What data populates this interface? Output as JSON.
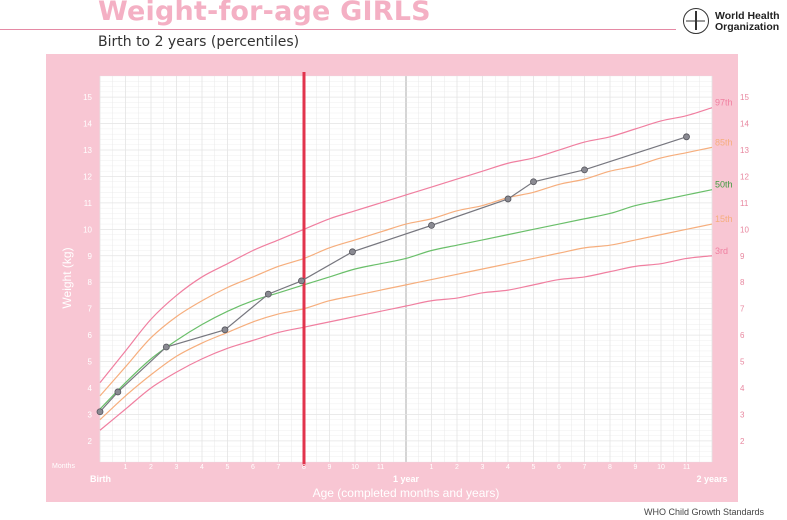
{
  "header": {
    "title": "Weight-for-age GIRLS",
    "subtitle": "Birth to 2 years (percentiles)",
    "org_name_line1": "World Health",
    "org_name_line2": "Organization",
    "footer": "WHO Child Growth Standards"
  },
  "colors": {
    "panel_bg": "#f8c6d3",
    "plot_bg": "#ffffff",
    "grid": "#e4e4e4",
    "p97": "#f07fa0",
    "p85": "#f6ae7d",
    "p50": "#6abf6a",
    "p15": "#f6ae7d",
    "p3": "#f07fa0",
    "child": "#77777f",
    "marker": "#e2344d"
  },
  "chart_data": {
    "type": "line",
    "title": "Weight-for-age GIRLS",
    "subtitle": "Birth to 2 years (percentiles)",
    "xlabel": "Age (completed months and years)",
    "ylabel": "Weight (kg)",
    "xlim": [
      0,
      24
    ],
    "ylim": [
      1.2,
      15.8
    ],
    "grid": true,
    "x_corner_label": "Months",
    "x_tick_labels": [
      {
        "x": 0,
        "label": "Birth",
        "bold": true
      },
      {
        "x": 1,
        "label": "1"
      },
      {
        "x": 2,
        "label": "2"
      },
      {
        "x": 3,
        "label": "3"
      },
      {
        "x": 4,
        "label": "4"
      },
      {
        "x": 5,
        "label": "5"
      },
      {
        "x": 6,
        "label": "6"
      },
      {
        "x": 7,
        "label": "7"
      },
      {
        "x": 8,
        "label": "8"
      },
      {
        "x": 9,
        "label": "9"
      },
      {
        "x": 10,
        "label": "10"
      },
      {
        "x": 11,
        "label": "11"
      },
      {
        "x": 12,
        "label": "1 year",
        "bold": true
      },
      {
        "x": 13,
        "label": "1"
      },
      {
        "x": 14,
        "label": "2"
      },
      {
        "x": 15,
        "label": "3"
      },
      {
        "x": 16,
        "label": "4"
      },
      {
        "x": 17,
        "label": "5"
      },
      {
        "x": 18,
        "label": "6"
      },
      {
        "x": 19,
        "label": "7"
      },
      {
        "x": 20,
        "label": "8"
      },
      {
        "x": 21,
        "label": "9"
      },
      {
        "x": 22,
        "label": "10"
      },
      {
        "x": 23,
        "label": "11"
      },
      {
        "x": 24,
        "label": "2 years",
        "bold": true
      }
    ],
    "y_ticks": [
      2,
      3,
      4,
      5,
      6,
      7,
      8,
      9,
      10,
      11,
      12,
      13,
      14,
      15
    ],
    "reference_line_x": 8,
    "percentile_curves": [
      {
        "name": "97th",
        "color_key": "p97",
        "x": [
          0,
          1,
          2,
          3,
          4,
          5,
          6,
          7,
          8,
          9,
          10,
          11,
          12,
          13,
          14,
          15,
          16,
          17,
          18,
          19,
          20,
          21,
          22,
          23,
          24
        ],
        "y": [
          4.2,
          5.4,
          6.6,
          7.5,
          8.2,
          8.7,
          9.2,
          9.6,
          10.0,
          10.4,
          10.7,
          11.0,
          11.3,
          11.6,
          11.9,
          12.2,
          12.5,
          12.7,
          13.0,
          13.3,
          13.5,
          13.8,
          14.1,
          14.3,
          14.6
        ]
      },
      {
        "name": "85th",
        "color_key": "p85",
        "x": [
          0,
          1,
          2,
          3,
          4,
          5,
          6,
          7,
          8,
          9,
          10,
          11,
          12,
          13,
          14,
          15,
          16,
          17,
          18,
          19,
          20,
          21,
          22,
          23,
          24
        ],
        "y": [
          3.7,
          4.8,
          5.9,
          6.7,
          7.3,
          7.8,
          8.2,
          8.6,
          8.9,
          9.3,
          9.6,
          9.9,
          10.2,
          10.4,
          10.7,
          10.9,
          11.2,
          11.4,
          11.7,
          11.9,
          12.2,
          12.4,
          12.7,
          12.9,
          13.1
        ]
      },
      {
        "name": "50th",
        "color_key": "p50",
        "x": [
          0,
          1,
          2,
          3,
          4,
          5,
          6,
          7,
          8,
          9,
          10,
          11,
          12,
          13,
          14,
          15,
          16,
          17,
          18,
          19,
          20,
          21,
          22,
          23,
          24
        ],
        "y": [
          3.2,
          4.2,
          5.1,
          5.8,
          6.4,
          6.9,
          7.3,
          7.6,
          7.9,
          8.2,
          8.5,
          8.7,
          8.9,
          9.2,
          9.4,
          9.6,
          9.8,
          10.0,
          10.2,
          10.4,
          10.6,
          10.9,
          11.1,
          11.3,
          11.5
        ]
      },
      {
        "name": "15th",
        "color_key": "p15",
        "x": [
          0,
          1,
          2,
          3,
          4,
          5,
          6,
          7,
          8,
          9,
          10,
          11,
          12,
          13,
          14,
          15,
          16,
          17,
          18,
          19,
          20,
          21,
          22,
          23,
          24
        ],
        "y": [
          2.8,
          3.7,
          4.5,
          5.2,
          5.7,
          6.1,
          6.5,
          6.8,
          7.0,
          7.3,
          7.5,
          7.7,
          7.9,
          8.1,
          8.3,
          8.5,
          8.7,
          8.9,
          9.1,
          9.3,
          9.4,
          9.6,
          9.8,
          10.0,
          10.2
        ]
      },
      {
        "name": "3rd",
        "color_key": "p3",
        "x": [
          0,
          1,
          2,
          3,
          4,
          5,
          6,
          7,
          8,
          9,
          10,
          11,
          12,
          13,
          14,
          15,
          16,
          17,
          18,
          19,
          20,
          21,
          22,
          23,
          24
        ],
        "y": [
          2.4,
          3.2,
          4.0,
          4.6,
          5.1,
          5.5,
          5.8,
          6.1,
          6.3,
          6.5,
          6.7,
          6.9,
          7.1,
          7.3,
          7.4,
          7.6,
          7.7,
          7.9,
          8.1,
          8.2,
          8.4,
          8.6,
          8.7,
          8.9,
          9.0
        ]
      }
    ],
    "series": [
      {
        "color_key": "child",
        "x": [
          0,
          0.7,
          2.6,
          4.9,
          6.6,
          7.9,
          9.9,
          13.0,
          16.0,
          17.0,
          19.0,
          23.0
        ],
        "y": [
          3.1,
          3.85,
          5.55,
          6.2,
          7.55,
          8.05,
          9.15,
          10.15,
          11.15,
          11.8,
          12.25,
          13.5
        ]
      }
    ]
  }
}
